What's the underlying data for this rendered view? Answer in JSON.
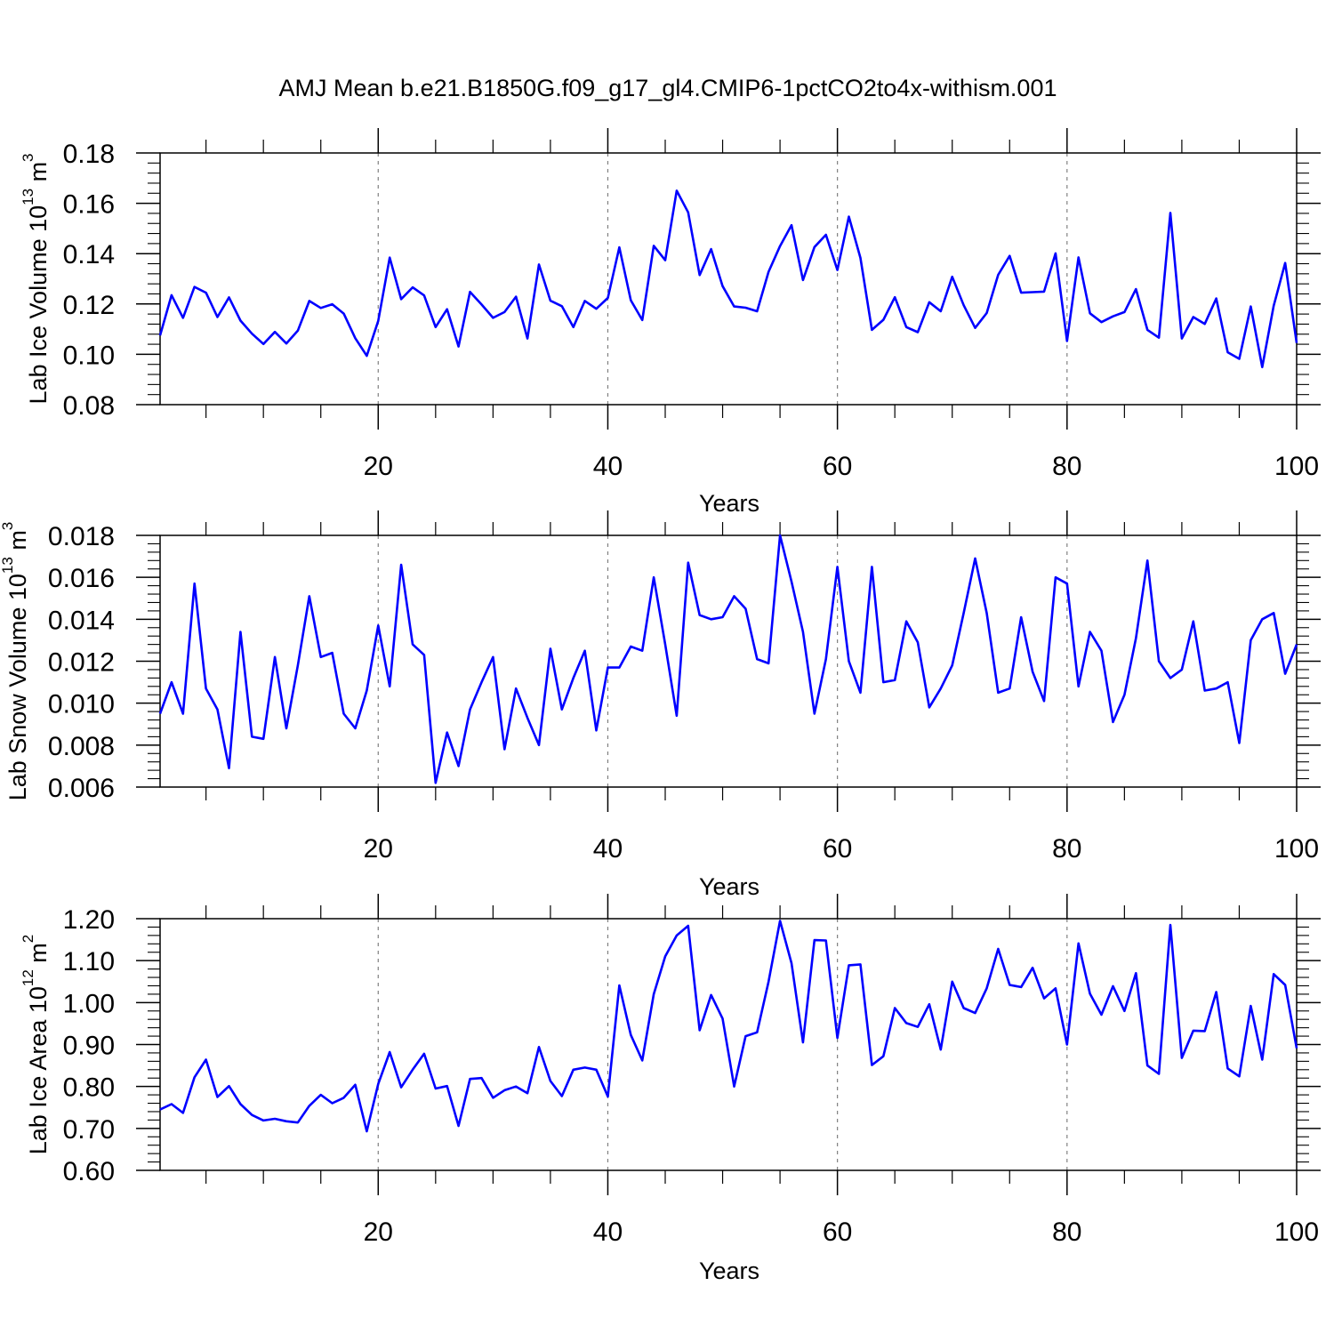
{
  "title": "AMJ Mean b.e21.B1850G.f09_g17_gl4.CMIP6-1pctCO2to4x-withism.001",
  "series_color": "#0000ff",
  "chart_data": [
    {
      "type": "line",
      "title": "",
      "xlabel": "Years",
      "ylabel": {
        "text": "Lab Ice Volume 10",
        "exp": "13",
        "unit": " m",
        "unit_exp": "3"
      },
      "xlim": [
        1,
        100
      ],
      "ylim": [
        0.08,
        0.18
      ],
      "xticks": [
        20,
        40,
        60,
        80,
        100
      ],
      "yticks": [
        "0.08",
        "0.10",
        "0.12",
        "0.14",
        "0.16",
        "0.18"
      ],
      "grid": "vertical dashed at major x ticks",
      "x": [
        1,
        2,
        3,
        4,
        5,
        6,
        7,
        8,
        9,
        10,
        11,
        12,
        13,
        14,
        15,
        16,
        17,
        18,
        19,
        20,
        21,
        22,
        23,
        24,
        25,
        26,
        27,
        28,
        29,
        30,
        31,
        32,
        33,
        34,
        35,
        36,
        37,
        38,
        39,
        40,
        41,
        42,
        43,
        44,
        45,
        46,
        47,
        48,
        49,
        50,
        51,
        52,
        53,
        54,
        55,
        56,
        57,
        58,
        59,
        60,
        61,
        62,
        63,
        64,
        65,
        66,
        67,
        68,
        69,
        70,
        71,
        72,
        73,
        74,
        75,
        76,
        77,
        78,
        79,
        80,
        81,
        82,
        83,
        84,
        85,
        86,
        87,
        88,
        89,
        90,
        91,
        92,
        93,
        94,
        95,
        96,
        97,
        98,
        99,
        100
      ],
      "values": [
        0.1075,
        0.1235,
        0.1145,
        0.1268,
        0.1245,
        0.1148,
        0.1226,
        0.1134,
        0.1082,
        0.1041,
        0.1089,
        0.1043,
        0.1094,
        0.1212,
        0.1184,
        0.1199,
        0.1162,
        0.1064,
        0.0994,
        0.1133,
        0.1384,
        0.1219,
        0.1266,
        0.1234,
        0.1108,
        0.1179,
        0.1031,
        0.1248,
        0.1198,
        0.1145,
        0.1168,
        0.1229,
        0.1063,
        0.1357,
        0.1213,
        0.1191,
        0.1108,
        0.1212,
        0.1181,
        0.1224,
        0.1425,
        0.1215,
        0.1136,
        0.1431,
        0.1374,
        0.165,
        0.1564,
        0.1315,
        0.1418,
        0.1271,
        0.119,
        0.1185,
        0.1171,
        0.1328,
        0.143,
        0.1513,
        0.1295,
        0.1426,
        0.1475,
        0.1335,
        0.1547,
        0.1383,
        0.1097,
        0.1137,
        0.1227,
        0.1108,
        0.1088,
        0.1207,
        0.1171,
        0.1308,
        0.1195,
        0.1105,
        0.1164,
        0.1316,
        0.1391,
        0.1245,
        0.1247,
        0.1249,
        0.1401,
        0.1053,
        0.1385,
        0.1163,
        0.1128,
        0.1151,
        0.1168,
        0.1259,
        0.1097,
        0.1066,
        0.1562,
        0.1063,
        0.1148,
        0.1121,
        0.1222,
        0.1008,
        0.0982,
        0.119,
        0.0949,
        0.1193,
        0.1363,
        0.1045
      ]
    },
    {
      "type": "line",
      "title": "",
      "xlabel": "Years",
      "ylabel": {
        "text": "Lab Snow Volume 10",
        "exp": "13",
        "unit": " m",
        "unit_exp": "3"
      },
      "xlim": [
        1,
        100
      ],
      "ylim": [
        0.006,
        0.018
      ],
      "xticks": [
        20,
        40,
        60,
        80,
        100
      ],
      "yticks": [
        "0.006",
        "0.008",
        "0.010",
        "0.012",
        "0.014",
        "0.016",
        "0.018"
      ],
      "grid": "vertical dashed at major x ticks",
      "x": [
        1,
        2,
        3,
        4,
        5,
        6,
        7,
        8,
        9,
        10,
        11,
        12,
        13,
        14,
        15,
        16,
        17,
        18,
        19,
        20,
        21,
        22,
        23,
        24,
        25,
        26,
        27,
        28,
        29,
        30,
        31,
        32,
        33,
        34,
        35,
        36,
        37,
        38,
        39,
        40,
        41,
        42,
        43,
        44,
        45,
        46,
        47,
        48,
        49,
        50,
        51,
        52,
        53,
        54,
        55,
        56,
        57,
        58,
        59,
        60,
        61,
        62,
        63,
        64,
        65,
        66,
        67,
        68,
        69,
        70,
        71,
        72,
        73,
        74,
        75,
        76,
        77,
        78,
        79,
        80,
        81,
        82,
        83,
        84,
        85,
        86,
        87,
        88,
        89,
        90,
        91,
        92,
        93,
        94,
        95,
        96,
        97,
        98,
        99,
        100
      ],
      "values": [
        0.0095,
        0.011,
        0.0095,
        0.0157,
        0.0107,
        0.0097,
        0.0069,
        0.0134,
        0.0084,
        0.0083,
        0.0122,
        0.0088,
        0.0118,
        0.0151,
        0.0122,
        0.0124,
        0.0095,
        0.0088,
        0.0106,
        0.0137,
        0.0108,
        0.0166,
        0.0128,
        0.0123,
        0.0062,
        0.0086,
        0.007,
        0.0097,
        0.011,
        0.0122,
        0.0078,
        0.0107,
        0.0093,
        0.008,
        0.0126,
        0.0097,
        0.0112,
        0.0125,
        0.0087,
        0.0117,
        0.0117,
        0.0127,
        0.0125,
        0.016,
        0.0128,
        0.0094,
        0.0167,
        0.0142,
        0.014,
        0.0141,
        0.0151,
        0.0145,
        0.0121,
        0.0119,
        0.018,
        0.0158,
        0.0134,
        0.0095,
        0.0121,
        0.0165,
        0.012,
        0.0105,
        0.0165,
        0.011,
        0.0111,
        0.0139,
        0.0129,
        0.0098,
        0.0107,
        0.0118,
        0.0143,
        0.0169,
        0.0143,
        0.0105,
        0.0107,
        0.0141,
        0.0115,
        0.0101,
        0.016,
        0.0157,
        0.0108,
        0.0134,
        0.0125,
        0.0091,
        0.0104,
        0.0131,
        0.0168,
        0.012,
        0.0112,
        0.0116,
        0.0139,
        0.0106,
        0.0107,
        0.011,
        0.0081,
        0.013,
        0.014,
        0.0143,
        0.0114,
        0.0128
      ]
    },
    {
      "type": "line",
      "title": "",
      "xlabel": "Years",
      "ylabel": {
        "text": "Lab Ice Area 10",
        "exp": "12",
        "unit": " m",
        "unit_exp": "2"
      },
      "xlim": [
        1,
        100
      ],
      "ylim": [
        0.6,
        1.2
      ],
      "xticks": [
        20,
        40,
        60,
        80,
        100
      ],
      "yticks": [
        "0.60",
        "0.70",
        "0.80",
        "0.90",
        "1.00",
        "1.10",
        "1.20"
      ],
      "grid": "vertical dashed at major x ticks",
      "x": [
        1,
        2,
        3,
        4,
        5,
        6,
        7,
        8,
        9,
        10,
        11,
        12,
        13,
        14,
        15,
        16,
        17,
        18,
        19,
        20,
        21,
        22,
        23,
        24,
        25,
        26,
        27,
        28,
        29,
        30,
        31,
        32,
        33,
        34,
        35,
        36,
        37,
        38,
        39,
        40,
        41,
        42,
        43,
        44,
        45,
        46,
        47,
        48,
        49,
        50,
        51,
        52,
        53,
        54,
        55,
        56,
        57,
        58,
        59,
        60,
        61,
        62,
        63,
        64,
        65,
        66,
        67,
        68,
        69,
        70,
        71,
        72,
        73,
        74,
        75,
        76,
        77,
        78,
        79,
        80,
        81,
        82,
        83,
        84,
        85,
        86,
        87,
        88,
        89,
        90,
        91,
        92,
        93,
        94,
        95,
        96,
        97,
        98,
        99,
        100
      ],
      "values": [
        0.745,
        0.758,
        0.737,
        0.822,
        0.864,
        0.775,
        0.801,
        0.758,
        0.732,
        0.719,
        0.723,
        0.717,
        0.714,
        0.754,
        0.78,
        0.76,
        0.773,
        0.804,
        0.693,
        0.806,
        0.882,
        0.798,
        0.84,
        0.878,
        0.795,
        0.801,
        0.706,
        0.818,
        0.82,
        0.773,
        0.791,
        0.8,
        0.784,
        0.894,
        0.813,
        0.777,
        0.84,
        0.845,
        0.84,
        0.776,
        1.041,
        0.923,
        0.862,
        1.02,
        1.11,
        1.16,
        1.183,
        0.934,
        1.018,
        0.962,
        0.8,
        0.92,
        0.929,
        1.05,
        1.195,
        1.094,
        0.905,
        1.149,
        1.148,
        0.916,
        1.089,
        1.091,
        0.851,
        0.872,
        0.987,
        0.951,
        0.942,
        0.996,
        0.888,
        1.05,
        0.987,
        0.975,
        1.034,
        1.128,
        1.042,
        1.037,
        1.083,
        1.01,
        1.034,
        0.9,
        1.141,
        1.021,
        0.971,
        1.039,
        0.98,
        1.07,
        0.85,
        0.83,
        1.185,
        0.868,
        0.933,
        0.932,
        1.025,
        0.843,
        0.824,
        0.992,
        0.864,
        1.068,
        1.042,
        0.891
      ]
    }
  ]
}
